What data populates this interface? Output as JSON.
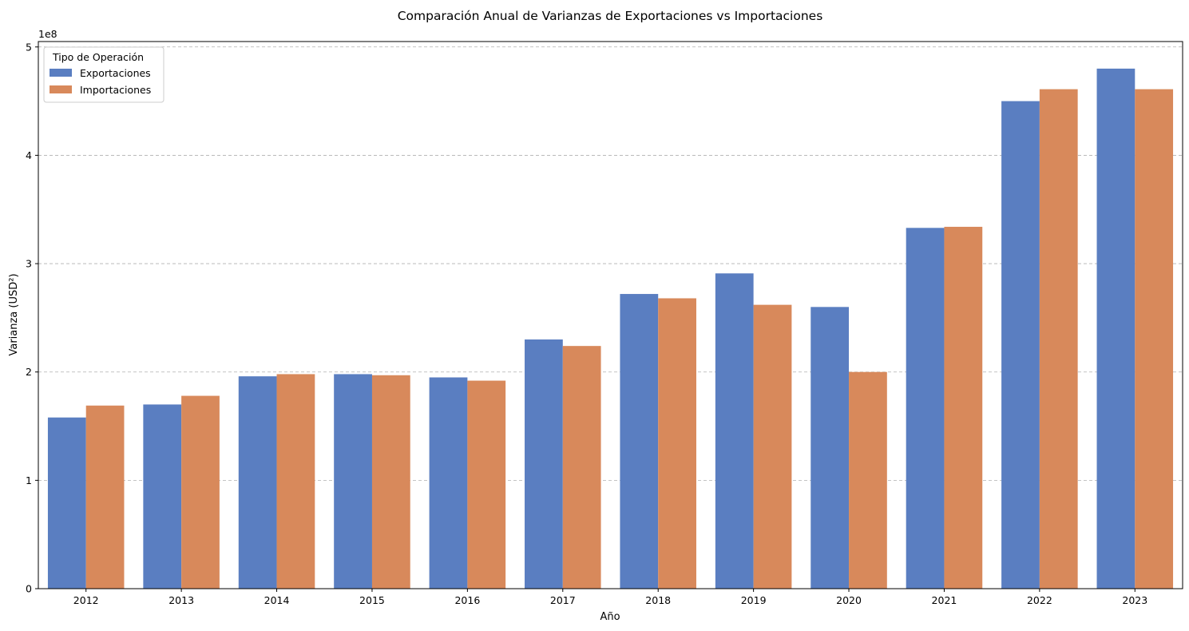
{
  "chart_data": {
    "type": "bar",
    "title": "Comparación Anual de Varianzas de Exportaciones vs Importaciones",
    "xlabel": "Año",
    "ylabel": "Varianza (USD²)",
    "y_multiplier_label": "1e8",
    "categories": [
      "2012",
      "2013",
      "2014",
      "2015",
      "2016",
      "2017",
      "2018",
      "2019",
      "2020",
      "2021",
      "2022",
      "2023"
    ],
    "series": [
      {
        "name": "Exportaciones",
        "color": "#5a7ec1",
        "values": [
          1.58,
          1.7,
          1.96,
          1.98,
          1.95,
          2.3,
          2.72,
          2.91,
          2.6,
          3.33,
          4.5,
          4.8
        ]
      },
      {
        "name": "Importaciones",
        "color": "#d8895b",
        "values": [
          1.69,
          1.78,
          1.98,
          1.97,
          1.92,
          2.24,
          2.68,
          2.62,
          2.0,
          3.34,
          4.61,
          4.61
        ]
      }
    ],
    "ylim": [
      0,
      5.05
    ],
    "yticks": [
      0,
      1,
      2,
      3,
      4,
      5
    ],
    "grid": true,
    "legend": {
      "title": "Tipo de Operación",
      "placement": "top-left"
    }
  }
}
